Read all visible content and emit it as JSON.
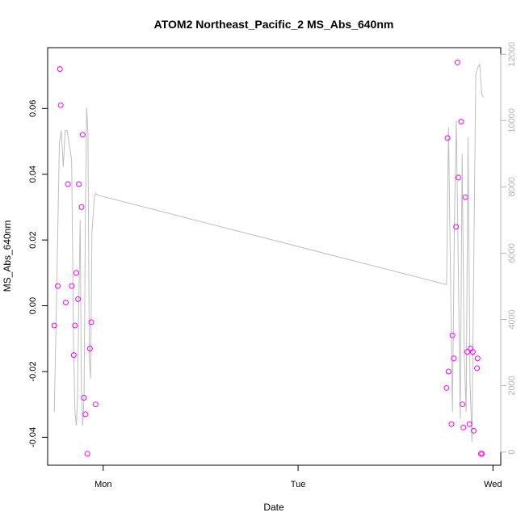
{
  "chart_data": {
    "type": "scatter",
    "title": "ATOM2 Northeast_Pacific_2 MS_Abs_640nm",
    "xlabel": "Date",
    "ylabel": "MS_Abs_640nm",
    "x_ticks": [
      "Mon",
      "Tue",
      "Wed"
    ],
    "x_tick_days": [
      1,
      2,
      3
    ],
    "xlim_days": [
      0.715,
      3.04
    ],
    "ylim": [
      -0.0485,
      0.0785
    ],
    "y_ticks": [
      -0.04,
      -0.02,
      0.0,
      0.02,
      0.04,
      0.06
    ],
    "y_tick_labels": [
      "-0.04",
      "-0.02",
      "0.00",
      "0.02",
      "0.04",
      "0.06"
    ],
    "y2lim": [
      -400,
      12200
    ],
    "y2_ticks": [
      0,
      2000,
      4000,
      6000,
      8000,
      10000,
      12000
    ],
    "y2_tick_labels": [
      "0",
      "2000",
      "4000",
      "6000",
      "8000",
      "10000",
      "12000"
    ],
    "grid": false,
    "legend": "none",
    "series": [
      {
        "type": "scatter",
        "axis": "left",
        "color": "#ff00ff",
        "x_days": [
          0.749,
          0.767,
          0.778,
          0.782,
          0.808,
          0.819,
          0.839,
          0.849,
          0.855,
          0.862,
          0.871,
          0.875,
          0.889,
          0.895,
          0.901,
          0.909,
          0.919,
          0.932,
          0.939,
          0.961,
          2.762,
          2.767,
          2.772,
          2.787,
          2.792,
          2.799,
          2.811,
          2.818,
          2.822,
          2.837,
          2.844,
          2.848,
          2.858,
          2.868,
          2.879,
          2.885,
          2.896,
          2.901,
          2.918,
          2.921,
          2.938,
          2.944
        ],
        "y": [
          -0.006,
          0.006,
          0.072,
          0.061,
          0.001,
          0.037,
          0.006,
          -0.015,
          -0.006,
          0.01,
          0.002,
          0.037,
          0.03,
          0.052,
          -0.028,
          -0.033,
          -0.045,
          -0.013,
          -0.005,
          -0.03,
          -0.025,
          0.051,
          -0.02,
          -0.036,
          -0.009,
          -0.016,
          0.024,
          0.074,
          0.039,
          0.056,
          -0.03,
          -0.037,
          0.033,
          -0.014,
          -0.036,
          -0.013,
          -0.014,
          -0.038,
          -0.019,
          -0.016,
          -0.045,
          -0.045
        ]
      },
      {
        "type": "line",
        "axis": "right",
        "color": "#bebebe",
        "x_days": [
          0.749,
          0.762,
          0.775,
          0.785,
          0.795,
          0.805,
          0.815,
          0.828,
          0.838,
          0.848,
          0.855,
          0.862,
          0.868,
          0.875,
          0.882,
          0.888,
          0.895,
          0.902,
          0.909,
          0.915,
          0.922,
          0.929,
          0.935,
          0.942,
          0.955,
          0.962,
          0.972,
          2.762,
          2.772,
          2.782,
          2.792,
          2.802,
          2.812,
          2.822,
          2.832,
          2.842,
          2.852,
          2.862,
          2.872,
          2.882,
          2.892,
          2.902,
          2.912,
          2.922,
          2.932,
          2.942,
          2.952
        ],
        "y": [
          1200,
          5000,
          9300,
          9700,
          8600,
          9700,
          9700,
          9200,
          8800,
          3200,
          1200,
          800,
          1600,
          4600,
          7000,
          2000,
          800,
          1700,
          7400,
          10400,
          9600,
          2800,
          2200,
          6600,
          7700,
          7800,
          7750,
          5050,
          9800,
          5500,
          1200,
          6900,
          10000,
          5600,
          1000,
          9000,
          3100,
          1200,
          9500,
          2200,
          300,
          6000,
          11400,
          11600,
          11700,
          10800,
          10700
        ]
      }
    ]
  }
}
